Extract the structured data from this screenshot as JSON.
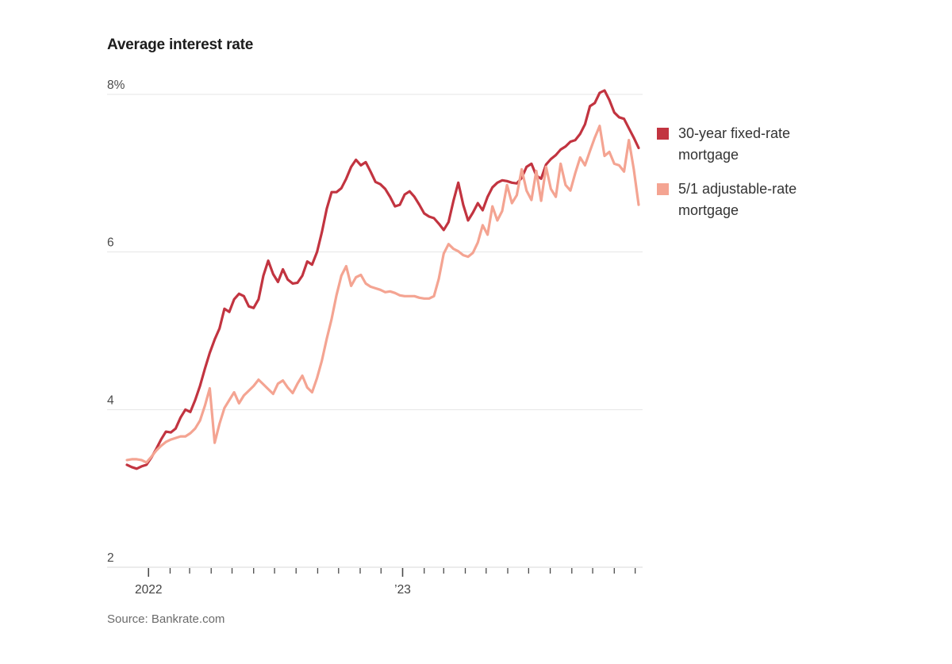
{
  "chart_data": {
    "type": "line",
    "title": "Average interest rate",
    "source": "Source: Bankrate.com",
    "y_axis": {
      "range": [
        2,
        8
      ],
      "ticks": [
        {
          "value": 8,
          "label": "8%"
        },
        {
          "value": 6,
          "label": "6"
        },
        {
          "value": 4,
          "label": "4"
        },
        {
          "value": 2,
          "label": "2"
        }
      ],
      "gridlines": true
    },
    "x_axis": {
      "unit": "weeks",
      "range": [
        0,
        105
      ],
      "major_ticks": [
        {
          "week": 4.43,
          "label": "2022"
        },
        {
          "week": 56.57,
          "label": "’23"
        }
      ],
      "minor_tick_weeks": [
        8.86,
        12.86,
        17.29,
        21.57,
        26,
        30.29,
        34.71,
        39.14,
        43.43,
        47.86,
        52.14,
        61,
        65,
        69.43,
        73.71,
        78.14,
        82.43,
        86.86,
        91.29,
        95.57,
        100,
        104.29
      ]
    },
    "legend_position": "right",
    "series": [
      {
        "name": "30-year fixed-rate mortgage",
        "color": "#c23440",
        "values": [
          3.3,
          3.27,
          3.25,
          3.28,
          3.3,
          3.39,
          3.5,
          3.62,
          3.72,
          3.71,
          3.76,
          3.9,
          4.0,
          3.97,
          4.12,
          4.3,
          4.52,
          4.72,
          4.89,
          5.03,
          5.28,
          5.24,
          5.4,
          5.47,
          5.44,
          5.31,
          5.29,
          5.4,
          5.7,
          5.89,
          5.72,
          5.62,
          5.78,
          5.65,
          5.6,
          5.61,
          5.7,
          5.88,
          5.84,
          6.0,
          6.25,
          6.55,
          6.76,
          6.76,
          6.81,
          6.93,
          7.08,
          7.17,
          7.1,
          7.14,
          7.02,
          6.89,
          6.86,
          6.8,
          6.7,
          6.58,
          6.6,
          6.73,
          6.77,
          6.7,
          6.6,
          6.49,
          6.45,
          6.43,
          6.36,
          6.28,
          6.38,
          6.65,
          6.88,
          6.6,
          6.4,
          6.5,
          6.62,
          6.53,
          6.7,
          6.82,
          6.88,
          6.91,
          6.9,
          6.88,
          6.87,
          6.94,
          7.08,
          7.12,
          6.97,
          6.93,
          7.11,
          7.18,
          7.23,
          7.3,
          7.34,
          7.4,
          7.42,
          7.5,
          7.62,
          7.85,
          7.89,
          8.02,
          8.05,
          7.93,
          7.77,
          7.71,
          7.69,
          7.57,
          7.45,
          7.32
        ]
      },
      {
        "name": "5/1 adjustable-rate mortgage",
        "color": "#f4a492",
        "values": [
          3.36,
          3.37,
          3.37,
          3.36,
          3.33,
          3.4,
          3.48,
          3.54,
          3.59,
          3.62,
          3.64,
          3.66,
          3.66,
          3.7,
          3.76,
          3.86,
          4.05,
          4.27,
          3.58,
          3.82,
          4.02,
          4.12,
          4.22,
          4.08,
          4.18,
          4.24,
          4.3,
          4.38,
          4.32,
          4.26,
          4.2,
          4.33,
          4.37,
          4.28,
          4.21,
          4.33,
          4.43,
          4.28,
          4.22,
          4.4,
          4.62,
          4.9,
          5.15,
          5.45,
          5.7,
          5.82,
          5.57,
          5.68,
          5.71,
          5.6,
          5.56,
          5.54,
          5.52,
          5.49,
          5.5,
          5.48,
          5.45,
          5.44,
          5.44,
          5.44,
          5.42,
          5.41,
          5.41,
          5.44,
          5.66,
          5.98,
          6.1,
          6.04,
          6.01,
          5.96,
          5.94,
          5.99,
          6.12,
          6.34,
          6.22,
          6.58,
          6.4,
          6.52,
          6.85,
          6.62,
          6.72,
          7.05,
          6.78,
          6.66,
          7.03,
          6.65,
          7.08,
          6.8,
          6.7,
          7.12,
          6.85,
          6.78,
          7.0,
          7.2,
          7.1,
          7.28,
          7.45,
          7.6,
          7.22,
          7.27,
          7.12,
          7.1,
          7.02,
          7.42,
          7.05,
          6.6
        ]
      }
    ]
  }
}
